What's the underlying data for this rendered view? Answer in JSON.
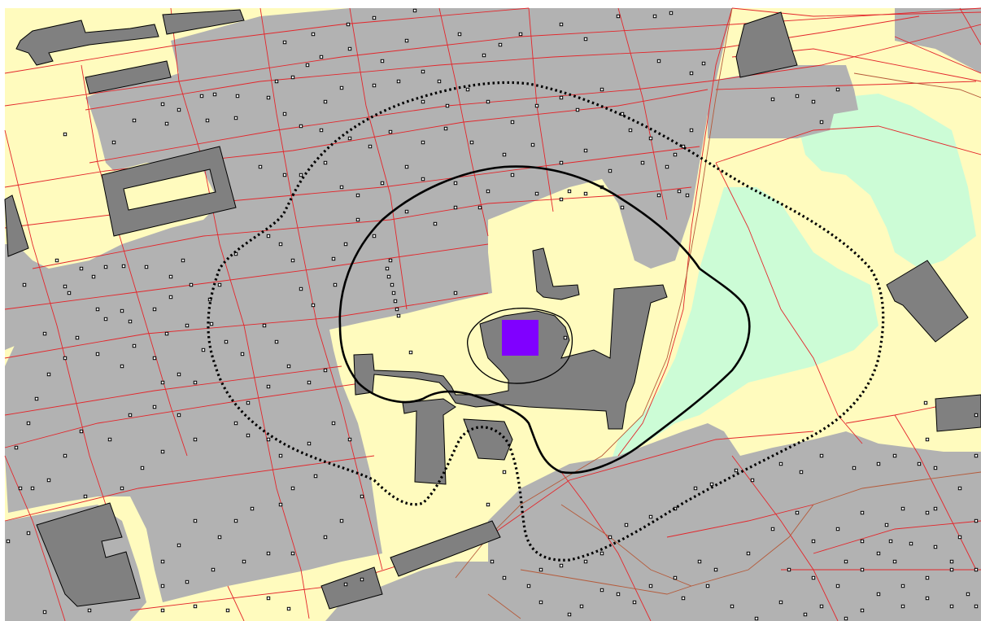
{
  "map": {
    "colors": {
      "background": "#ffffff",
      "land": "#fffbbe",
      "residential_area": "#b2b2b2",
      "building": "#808080",
      "green_area": "#ccfcd6",
      "parcel_line": "#e3262b",
      "path_line": "#b55a3a",
      "contour": "#000000",
      "source_marker": "#8000ff",
      "point_marker": "#000000"
    },
    "layers": {
      "residential_areas": "residential-area",
      "buildings": "building",
      "green_areas": "green-area",
      "parcel_lines": "parcel-line",
      "contours": "noise-contour",
      "source": "source-marker",
      "points": "tree-point"
    }
  }
}
